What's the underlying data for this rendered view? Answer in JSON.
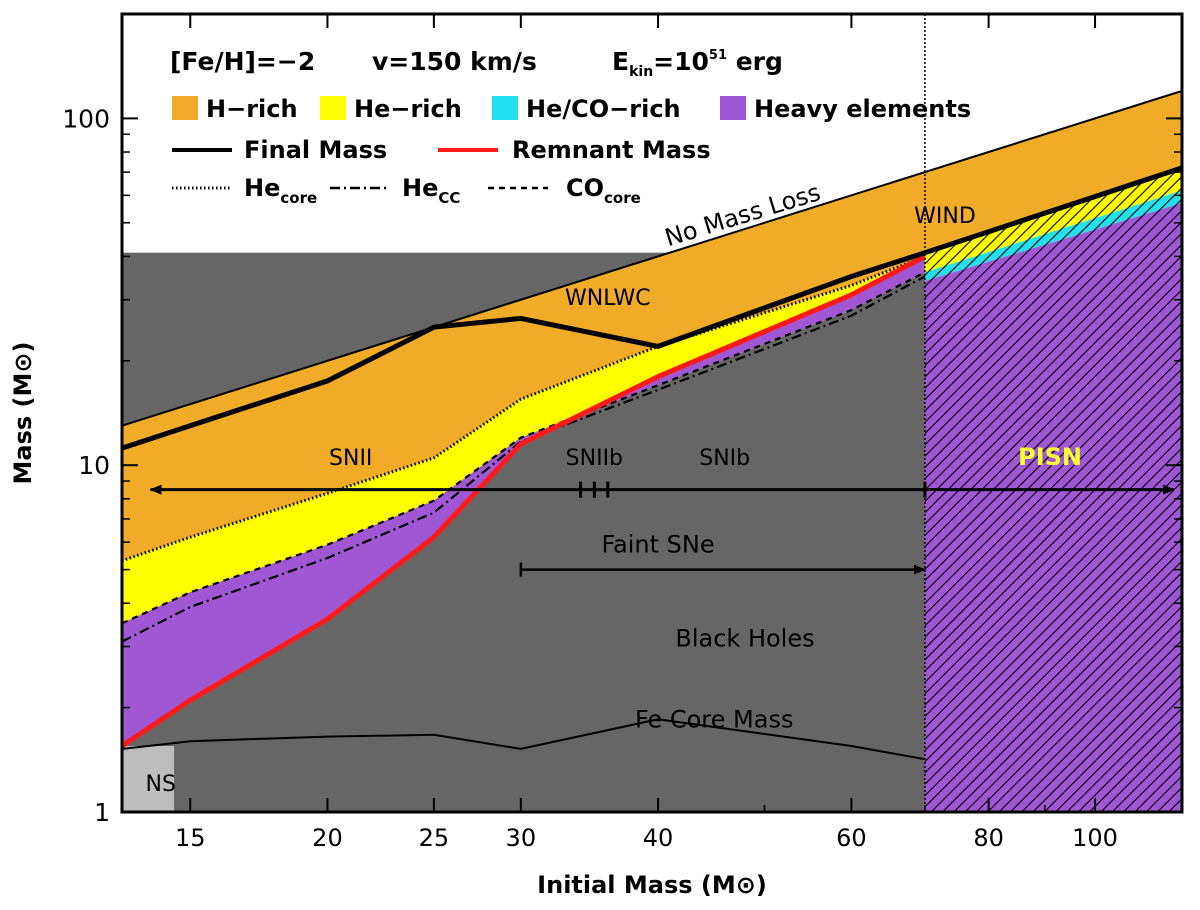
{
  "chart_data": {
    "type": "area",
    "x_scale": "log",
    "y_scale": "log",
    "xlim": [
      13,
      120
    ],
    "ylim": [
      1,
      200
    ],
    "xlabel": "Initial Mass (M⊙)",
    "ylabel": "Mass (M⊙)",
    "x_ticks": [
      15,
      20,
      25,
      30,
      40,
      60,
      80,
      100
    ],
    "y_ticks": [
      1,
      10,
      100
    ],
    "legend": {
      "header": {
        "feh": "[Fe/H]=−2",
        "velocity": "v=150 km/s",
        "ekin_prefix": "E",
        "ekin_sub": "kin",
        "ekin_suffix": "=10",
        "ekin_exp": "51",
        "ekin_unit": " erg"
      },
      "fills": [
        {
          "label": "H−rich",
          "color": "#f0ac28"
        },
        {
          "label": "He−rich",
          "color": "#ffff00"
        },
        {
          "label": "He/CO−rich",
          "color": "#22e0ee"
        },
        {
          "label": "Heavy elements",
          "color": "#a057d4"
        }
      ],
      "lines": [
        {
          "label": "Final Mass",
          "color": "#000000"
        },
        {
          "label": "Remnant Mass",
          "color": "#ff1a1a"
        }
      ],
      "core_lines": [
        {
          "label": "He",
          "sub": "core",
          "style": "dotted"
        },
        {
          "label": "He",
          "sub": "CC",
          "style": "dashdot"
        },
        {
          "label": "CO",
          "sub": "core",
          "style": "dashed"
        }
      ]
    },
    "series": [
      {
        "name": "No Mass Loss",
        "x": [
          13,
          120
        ],
        "y": [
          13,
          120
        ]
      },
      {
        "name": "Final Mass",
        "x": [
          13,
          15,
          20,
          25,
          30,
          40,
          60,
          70
        ],
        "y": [
          11.2,
          13,
          17.5,
          25,
          26.5,
          22,
          35,
          41
        ]
      },
      {
        "name": "Remnant Mass",
        "x": [
          13,
          15,
          20,
          25,
          30,
          40,
          60,
          70
        ],
        "y": [
          1.55,
          2.1,
          3.6,
          6.2,
          11.5,
          18,
          31,
          40
        ]
      },
      {
        "name": "He_core",
        "x": [
          13,
          15,
          20,
          25,
          30,
          40,
          60,
          70
        ],
        "y": [
          5.3,
          6.2,
          8.3,
          10.5,
          15.5,
          22,
          33,
          40
        ]
      },
      {
        "name": "He_CC",
        "x": [
          13,
          15,
          20,
          25,
          30,
          40,
          60,
          70
        ],
        "y": [
          3.1,
          3.9,
          5.4,
          7.3,
          11.7,
          16.5,
          27,
          35
        ]
      },
      {
        "name": "CO_core",
        "x": [
          13,
          15,
          20,
          25,
          30,
          40,
          60,
          70
        ],
        "y": [
          3.5,
          4.3,
          5.9,
          7.9,
          12.0,
          17,
          28,
          36
        ]
      },
      {
        "name": "Fe Core Mass",
        "x": [
          13,
          15,
          20,
          25,
          30,
          40,
          60,
          70
        ],
        "y": [
          1.52,
          1.6,
          1.65,
          1.67,
          1.52,
          1.85,
          1.55,
          1.42
        ]
      },
      {
        "name": "PISN top",
        "x": [
          70,
          120
        ],
        "y": [
          41,
          72
        ]
      },
      {
        "name": "PISN heavy",
        "x": [
          70,
          120
        ],
        "y": [
          34,
          57
        ]
      }
    ],
    "regions": {
      "ns_boundary": 14.5,
      "pisn_start": 70,
      "sn_arrow_level": 8.5,
      "faint_arrow": {
        "from": 30,
        "to": 70,
        "level": 5.0
      },
      "sn_ticks": [
        34,
        35,
        36
      ]
    },
    "annotations": [
      {
        "text": "No Mass Loss",
        "x": 48,
        "y": 50
      },
      {
        "text": "WIND",
        "x": 73,
        "y": 50
      },
      {
        "text": "WNLWC",
        "x": 36,
        "y": 29
      },
      {
        "text": "SNII",
        "x": 21,
        "y": 10
      },
      {
        "text": "SNIIb",
        "x": 35,
        "y": 10
      },
      {
        "text": "SNIb",
        "x": 46,
        "y": 10
      },
      {
        "text": "PISN",
        "x": 91,
        "y": 10
      },
      {
        "text": "Faint SNe",
        "x": 40,
        "y": 5.6
      },
      {
        "text": "Black Holes",
        "x": 48,
        "y": 3
      },
      {
        "text": "Fe Core Mass",
        "x": 45,
        "y": 1.75
      },
      {
        "text": "NS",
        "x": 14.1,
        "y": 1.15
      }
    ],
    "colors": {
      "h_rich": "#f0ac28",
      "he_rich": "#ffff00",
      "heco_rich": "#22e0ee",
      "heavy": "#a057d4",
      "black_holes": "#666666",
      "ns": "#bdbdbd",
      "remnant": "#ff1a1a",
      "pisn_label": "#ffff33"
    }
  }
}
